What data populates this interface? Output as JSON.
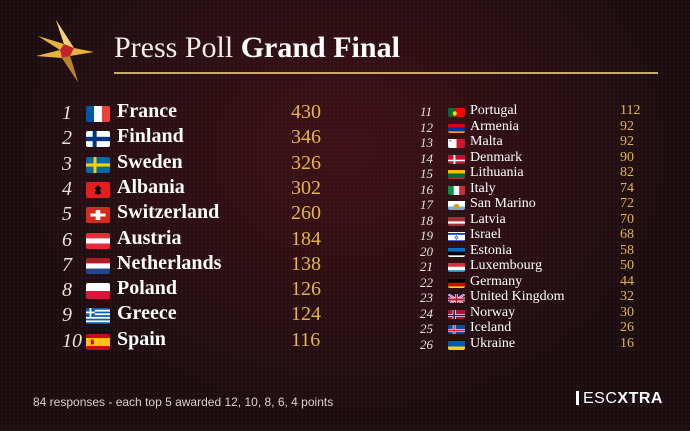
{
  "header": {
    "title_light": "Press Poll",
    "title_bold": "Grand Final"
  },
  "colors": {
    "gold": "#e3b54a",
    "rule": "#c9a96a",
    "background": "#1c0d10"
  },
  "left": [
    {
      "rank": "1",
      "country": "France",
      "points": "430",
      "flag": "france-flag"
    },
    {
      "rank": "2",
      "country": "Finland",
      "points": "346",
      "flag": "finland-flag"
    },
    {
      "rank": "3",
      "country": "Sweden",
      "points": "326",
      "flag": "sweden-flag"
    },
    {
      "rank": "4",
      "country": "Albania",
      "points": "302",
      "flag": "albania-flag"
    },
    {
      "rank": "5",
      "country": "Switzerland",
      "points": "260",
      "flag": "switzerland-flag"
    },
    {
      "rank": "6",
      "country": "Austria",
      "points": "184",
      "flag": "austria-flag"
    },
    {
      "rank": "7",
      "country": "Netherlands",
      "points": "138",
      "flag": "netherlands-flag"
    },
    {
      "rank": "8",
      "country": "Poland",
      "points": "126",
      "flag": "poland-flag"
    },
    {
      "rank": "9",
      "country": "Greece",
      "points": "124",
      "flag": "greece-flag"
    },
    {
      "rank": "10",
      "country": "Spain",
      "points": "116",
      "flag": "spain-flag"
    }
  ],
  "right": [
    {
      "rank": "11",
      "country": "Portugal",
      "points": "112",
      "flag": "portugal-flag"
    },
    {
      "rank": "12",
      "country": "Armenia",
      "points": "92",
      "flag": "armenia-flag"
    },
    {
      "rank": "13",
      "country": "Malta",
      "points": "92",
      "flag": "malta-flag"
    },
    {
      "rank": "14",
      "country": "Denmark",
      "points": "90",
      "flag": "denmark-flag"
    },
    {
      "rank": "15",
      "country": "Lithuania",
      "points": "82",
      "flag": "lithuania-flag"
    },
    {
      "rank": "16",
      "country": "Italy",
      "points": "74",
      "flag": "italy-flag"
    },
    {
      "rank": "17",
      "country": "San Marino",
      "points": "72",
      "flag": "san-marino-flag"
    },
    {
      "rank": "18",
      "country": "Latvia",
      "points": "70",
      "flag": "latvia-flag"
    },
    {
      "rank": "19",
      "country": "Israel",
      "points": "68",
      "flag": "israel-flag"
    },
    {
      "rank": "20",
      "country": "Estonia",
      "points": "58",
      "flag": "estonia-flag"
    },
    {
      "rank": "21",
      "country": "Luxembourg",
      "points": "50",
      "flag": "luxembourg-flag"
    },
    {
      "rank": "22",
      "country": "Germany",
      "points": "44",
      "flag": "germany-flag"
    },
    {
      "rank": "23",
      "country": "United Kingdom",
      "points": "32",
      "flag": "united-kingdom-flag"
    },
    {
      "rank": "24",
      "country": "Norway",
      "points": "30",
      "flag": "norway-flag"
    },
    {
      "rank": "25",
      "country": "Iceland",
      "points": "26",
      "flag": "iceland-flag"
    },
    {
      "rank": "26",
      "country": "Ukraine",
      "points": "16",
      "flag": "ukraine-flag"
    }
  ],
  "footer": {
    "note": "84 responses - each top 5 awarded 12, 10, 8, 6, 4 points"
  },
  "brand": {
    "part1": "ESC",
    "part2": "XTRA"
  }
}
